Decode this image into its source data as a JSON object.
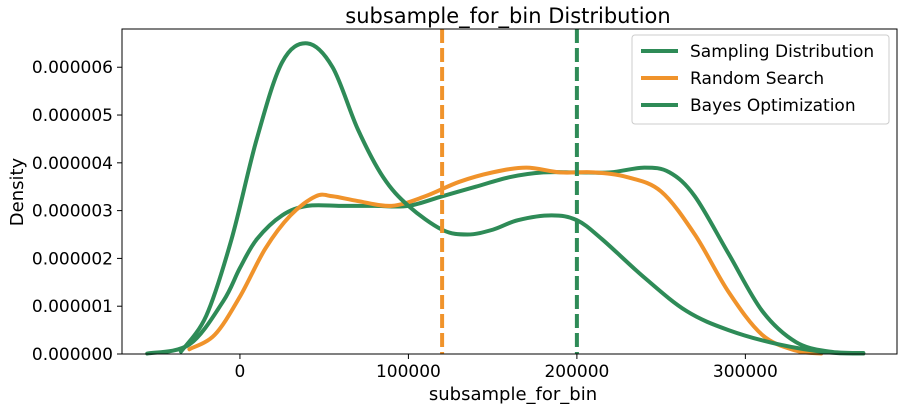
{
  "chart_data": {
    "type": "line",
    "title": "subsample_for_bin Distribution",
    "xlabel": "subsample_for_bin",
    "ylabel": "Density",
    "xlim": [
      -70000,
      390000
    ],
    "ylim": [
      0,
      6.8e-06
    ],
    "x_ticks": [
      0,
      100000,
      200000,
      300000
    ],
    "y_ticks": [
      0,
      1e-06,
      2e-06,
      3e-06,
      4e-06,
      5e-06,
      6e-06
    ],
    "x_tick_labels": [
      "0",
      "100000",
      "200000",
      "300000"
    ],
    "y_tick_labels": [
      "0.000000",
      "0.000001",
      "0.000002",
      "0.000003",
      "0.000004",
      "0.000005",
      "0.000006"
    ],
    "grid": false,
    "legend_position": "upper right",
    "series": [
      {
        "name": "Sampling Distribution",
        "color": "#2e8b57",
        "style": "solid",
        "x": [
          -55000,
          -30000,
          -10000,
          0,
          10000,
          25000,
          40000,
          60000,
          80000,
          100000,
          120000,
          140000,
          160000,
          180000,
          200000,
          220000,
          240000,
          255000,
          270000,
          290000,
          310000,
          330000,
          350000,
          370000
        ],
        "y": [
          1e-08,
          2e-07,
          1.1e-06,
          1.8e-06,
          2.4e-06,
          2.9e-06,
          3.1e-06,
          3.1e-06,
          3.1e-06,
          3.1e-06,
          3.3e-06,
          3.5e-06,
          3.7e-06,
          3.8e-06,
          3.8e-06,
          3.8e-06,
          3.9e-06,
          3.8e-06,
          3.3e-06,
          2.1e-06,
          9e-07,
          2.5e-07,
          5e-08,
          2e-08
        ]
      },
      {
        "name": "Random Search",
        "color": "#f0932b",
        "style": "solid",
        "x": [
          -30000,
          -15000,
          0,
          15000,
          30000,
          45000,
          55000,
          70000,
          90000,
          110000,
          130000,
          150000,
          170000,
          190000,
          210000,
          230000,
          250000,
          270000,
          290000,
          310000,
          330000,
          345000
        ],
        "y": [
          1e-07,
          4e-07,
          1.2e-06,
          2.2e-06,
          2.9e-06,
          3.3e-06,
          3.3e-06,
          3.2e-06,
          3.1e-06,
          3.3e-06,
          3.6e-06,
          3.8e-06,
          3.9e-06,
          3.8e-06,
          3.8e-06,
          3.7e-06,
          3.4e-06,
          2.5e-06,
          1.3e-06,
          4e-07,
          7e-08,
          1e-08
        ]
      },
      {
        "name": "Bayes Optimization",
        "color": "#2e8b57",
        "style": "solid",
        "x": [
          -35000,
          -20000,
          -5000,
          10000,
          25000,
          40000,
          55000,
          70000,
          85000,
          100000,
          120000,
          135000,
          150000,
          165000,
          185000,
          200000,
          215000,
          240000,
          265000,
          290000,
          320000,
          350000,
          370000
        ],
        "y": [
          5e-08,
          8e-07,
          2.4e-06,
          4.5e-06,
          6.1e-06,
          6.5e-06,
          6e-06,
          4.7e-06,
          3.7e-06,
          3.1e-06,
          2.6e-06,
          2.5e-06,
          2.6e-06,
          2.8e-06,
          2.9e-06,
          2.8e-06,
          2.4e-06,
          1.6e-06,
          9e-07,
          5e-07,
          2e-07,
          3e-08,
          1e-08
        ]
      }
    ],
    "reference_lines": [
      {
        "x": 120000,
        "color": "#f0932b",
        "style": "dashed"
      },
      {
        "x": 200000,
        "color": "#2e8b57",
        "style": "dashed"
      }
    ]
  }
}
